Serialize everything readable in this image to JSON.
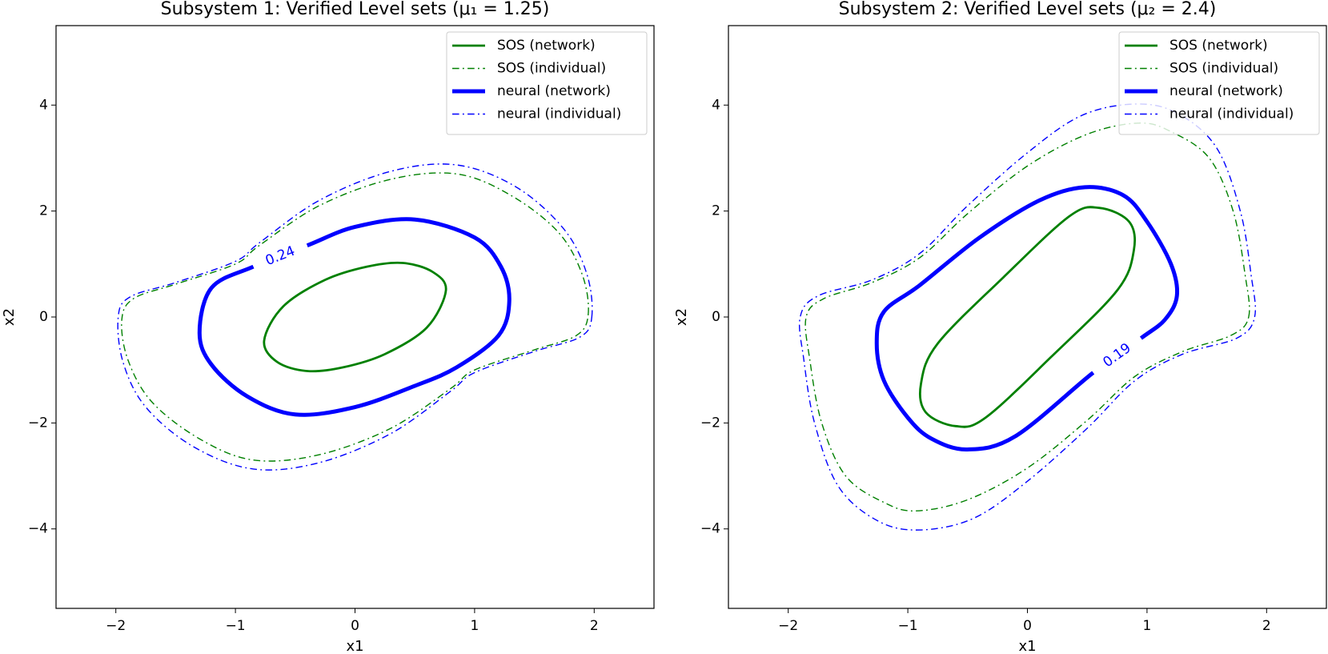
{
  "chart_data": [
    {
      "type": "contour",
      "title": "Subsystem 1: Verified Level sets (μ₁ = 1.25)",
      "x_label": "x1",
      "y_label": "x2",
      "xlim": [
        -2.5,
        2.5
      ],
      "ylim": [
        -5.5,
        5.5
      ],
      "xticks": [
        {
          "value": -2,
          "label": "−2"
        },
        {
          "value": -1,
          "label": "−1"
        },
        0,
        1,
        2
      ],
      "yticks": [
        {
          "value": -4,
          "label": "−4"
        },
        {
          "value": -2,
          "label": "−2"
        },
        0,
        2,
        4
      ],
      "grid": false,
      "legend": "upper right",
      "series": [
        {
          "name": "SOS (network)",
          "color": "#008000",
          "linestyle": "solid",
          "linewidth": 2.8,
          "x": [
            0.76,
            0.65,
            0.4,
            0.1,
            -0.25,
            -0.6,
            -0.76,
            -0.65,
            -0.4,
            -0.1,
            0.25,
            0.6,
            0.76
          ],
          "values": [
            0.5,
            0.85,
            1.02,
            0.95,
            0.7,
            0.2,
            -0.45,
            -0.85,
            -1.02,
            -0.95,
            -0.7,
            -0.2,
            0.5
          ]
        },
        {
          "name": "SOS (individual)",
          "color": "#008000",
          "linestyle": "dashdot",
          "linewidth": 1.4,
          "x": [
            1.95,
            1.9,
            1.7,
            1.3,
            0.85,
            0.3,
            -0.3,
            -0.8,
            -1.0,
            -1.5,
            -1.85,
            -1.95,
            -1.9,
            -1.7,
            -1.3,
            -0.85,
            -0.3,
            0.3,
            0.8,
            1.0,
            1.5,
            1.85,
            1.95
          ],
          "values": [
            0.05,
            0.8,
            1.6,
            2.3,
            2.7,
            2.6,
            2.1,
            1.35,
            1.0,
            0.62,
            0.35,
            -0.05,
            -0.8,
            -1.6,
            -2.3,
            -2.7,
            -2.6,
            -2.1,
            -1.35,
            -1.0,
            -0.62,
            -0.35,
            0.05
          ]
        },
        {
          "name": "neural (network)",
          "color": "#0000ff",
          "linestyle": "solid",
          "linewidth": 5,
          "level": 0.24,
          "x": [
            1.29,
            1.22,
            1.0,
            0.5,
            0.0,
            -0.4,
            null,
            -0.85,
            -1.2,
            -1.3,
            -1.2,
            -0.9,
            -0.5,
            0.0,
            0.5,
            0.85,
            1.2,
            1.29
          ],
          "values": [
            0.3,
            0.95,
            1.5,
            1.84,
            1.7,
            1.35,
            null,
            0.95,
            0.55,
            -0.3,
            -0.9,
            -1.5,
            -1.84,
            -1.7,
            -1.3,
            -0.95,
            -0.35,
            0.3
          ]
        },
        {
          "name": "neural (individual)",
          "color": "#0000ff",
          "linestyle": "dashdot",
          "linewidth": 1.4,
          "x": [
            1.98,
            1.94,
            1.75,
            1.35,
            0.85,
            0.3,
            -0.3,
            -0.8,
            -1.0,
            -1.5,
            -1.88,
            -1.98,
            -1.94,
            -1.75,
            -1.35,
            -0.85,
            -0.3,
            0.3,
            0.8,
            1.0,
            1.5,
            1.88,
            1.98
          ],
          "values": [
            0.0,
            0.8,
            1.65,
            2.45,
            2.87,
            2.75,
            2.2,
            1.4,
            1.05,
            0.65,
            0.38,
            0.0,
            -0.85,
            -1.7,
            -2.45,
            -2.87,
            -2.75,
            -2.2,
            -1.4,
            -1.05,
            -0.65,
            -0.38,
            0.0
          ]
        }
      ]
    },
    {
      "type": "contour",
      "title": "Subsystem 2: Verified Level sets (μ₂ = 2.4)",
      "x_label": "x1",
      "y_label": "x2",
      "xlim": [
        -2.5,
        2.5
      ],
      "ylim": [
        -5.5,
        5.5
      ],
      "xticks": [
        {
          "value": -2,
          "label": "−2"
        },
        {
          "value": -1,
          "label": "−1"
        },
        0,
        1,
        2
      ],
      "yticks": [
        {
          "value": -4,
          "label": "−4"
        },
        {
          "value": -2,
          "label": "−2"
        },
        0,
        2,
        4
      ],
      "grid": false,
      "legend": "upper right",
      "series": [
        {
          "name": "SOS (network)",
          "color": "#008000",
          "linestyle": "solid",
          "linewidth": 2.8,
          "x": [
            0.89,
            0.85,
            0.6,
            0.35,
            -0.2,
            -0.75,
            -0.89,
            -0.85,
            -0.6,
            -0.35,
            0.2,
            0.75,
            0.89
          ],
          "values": [
            1.26,
            1.8,
            2.06,
            1.9,
            0.75,
            -0.5,
            -1.26,
            -1.8,
            -2.06,
            -1.9,
            -0.75,
            0.5,
            1.26
          ]
        },
        {
          "name": "SOS (individual)",
          "color": "#008000",
          "linestyle": "dashdot",
          "linewidth": 1.4,
          "x": [
            1.85,
            1.82,
            1.72,
            1.52,
            1.2,
            0.93,
            0.5,
            0.0,
            -0.5,
            -0.9,
            -1.3,
            -1.7,
            -1.85,
            -1.82,
            -1.72,
            -1.52,
            -1.2,
            -0.93,
            -0.5,
            0.0,
            0.5,
            0.9,
            1.3,
            1.7,
            1.85
          ],
          "values": [
            0.0,
            0.8,
            2.0,
            3.0,
            3.5,
            3.66,
            3.45,
            2.85,
            1.95,
            1.12,
            0.65,
            0.35,
            0.0,
            -0.8,
            -2.0,
            -3.0,
            -3.5,
            -3.66,
            -3.45,
            -2.85,
            -1.95,
            -1.12,
            -0.65,
            -0.35,
            0.0
          ]
        },
        {
          "name": "neural (network)",
          "color": "#0000ff",
          "linestyle": "solid",
          "linewidth": 5,
          "level": 0.19,
          "x": [
            1.25,
            1.2,
            1.0,
            0.8,
            0.48,
            0.1,
            -0.4,
            -0.9,
            -1.2,
            -1.26,
            -1.2,
            -1.0,
            -0.8,
            -0.5,
            -0.1,
            0.55,
            null,
            0.95,
            1.15,
            1.25
          ],
          "values": [
            0.4,
            1.0,
            1.8,
            2.3,
            2.45,
            2.2,
            1.5,
            0.6,
            0.1,
            -0.5,
            -1.2,
            -1.9,
            -2.3,
            -2.5,
            -2.25,
            -1.05,
            null,
            -0.4,
            -0.05,
            0.4
          ]
        },
        {
          "name": "neural (individual)",
          "color": "#0000ff",
          "linestyle": "dashdot",
          "linewidth": 1.4,
          "x": [
            1.9,
            1.87,
            1.78,
            1.58,
            1.25,
            0.9,
            0.45,
            0.0,
            -0.5,
            -0.9,
            -1.3,
            -1.75,
            -1.9,
            -1.87,
            -1.78,
            -1.58,
            -1.25,
            -0.9,
            -0.45,
            0.0,
            0.5,
            0.9,
            1.3,
            1.75,
            1.9
          ],
          "values": [
            0.0,
            0.8,
            2.0,
            3.2,
            3.85,
            4.02,
            3.8,
            3.1,
            2.1,
            1.2,
            0.7,
            0.4,
            0.0,
            -0.8,
            -2.0,
            -3.2,
            -3.85,
            -4.02,
            -3.8,
            -3.1,
            -2.1,
            -1.2,
            -0.7,
            -0.4,
            0.0
          ]
        }
      ]
    }
  ]
}
